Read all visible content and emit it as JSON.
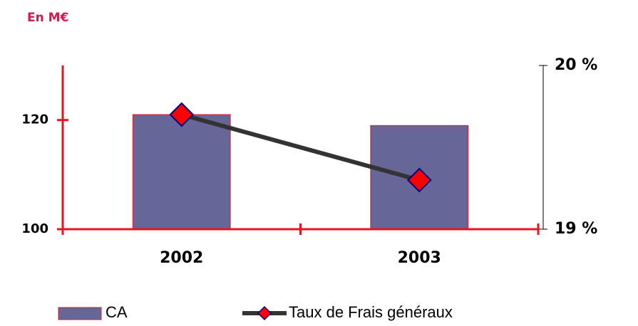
{
  "chart_data": {
    "type": "bar",
    "subtitle": "En M€",
    "categories": [
      "2002",
      "2003"
    ],
    "series": [
      {
        "name": "CA",
        "type": "bar",
        "color": "#666699",
        "values": [
          121,
          119
        ]
      },
      {
        "name": "Taux de Frais généraux",
        "type": "line",
        "axis": "y2",
        "color": "#333333",
        "marker_color": "#ff0000",
        "values": [
          19.7,
          19.3
        ]
      }
    ],
    "ylim": [
      100,
      130
    ],
    "yticks": [
      100,
      120
    ],
    "y2lim": [
      19,
      20
    ],
    "y2ticks": [
      {
        "value": 19,
        "label": "19 %"
      },
      {
        "value": 20,
        "label": "20 %"
      }
    ],
    "axis_color": "#e8141f",
    "legend": "bottom"
  }
}
